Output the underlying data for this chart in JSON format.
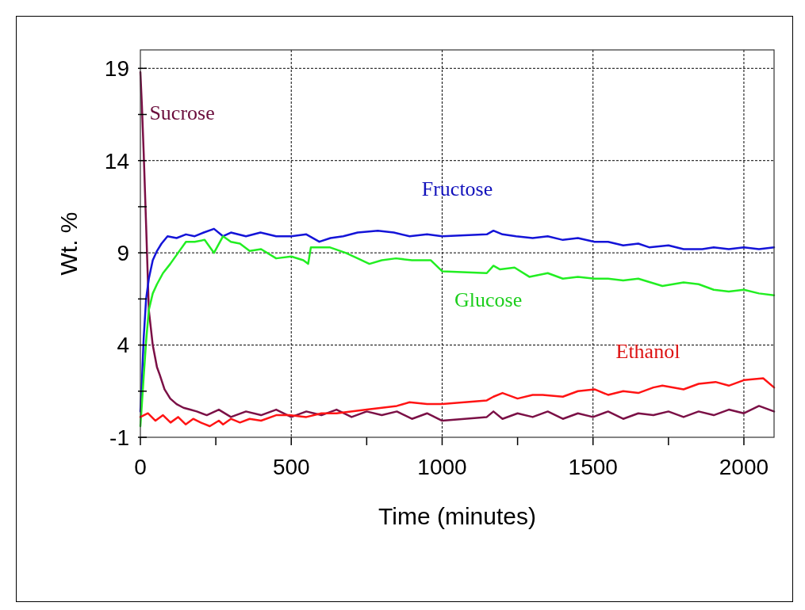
{
  "chart_data": {
    "type": "line",
    "xlabel": "Time (minutes)",
    "ylabel": "Wt. %",
    "xlim": [
      0,
      2100
    ],
    "ylim": [
      -1,
      20
    ],
    "xticks": [
      0,
      {
        "value": 250,
        "label": null
      },
      500,
      {
        "value": 750,
        "label": null
      },
      1000,
      {
        "value": 1250,
        "label": null
      },
      1500,
      {
        "value": 1750,
        "label": null
      },
      2000
    ],
    "yticks": [
      -1,
      {
        "value": 1.5,
        "label": null
      },
      4,
      {
        "value": 6.5,
        "label": null
      },
      9,
      {
        "value": 11.5,
        "label": null
      },
      14,
      {
        "value": 16.5,
        "label": null
      },
      19
    ],
    "grid": true,
    "marker": "none",
    "line_style": "solid",
    "legend": false,
    "series": [
      {
        "name": "Sucrose",
        "color": "#7b1046",
        "x": [
          0,
          5,
          11,
          19,
          28,
          41,
          55,
          64,
          80,
          99,
          120,
          143,
          165,
          187,
          220,
          260,
          300,
          350,
          400,
          450,
          500,
          550,
          600,
          650,
          700,
          750,
          800,
          850,
          900,
          950,
          1000,
          1148,
          1170,
          1200,
          1250,
          1300,
          1350,
          1400,
          1450,
          1500,
          1550,
          1600,
          1650,
          1700,
          1750,
          1800,
          1850,
          1900,
          1950,
          2000,
          2050,
          2100
        ],
        "values": [
          18.8,
          17,
          14.4,
          10.5,
          5.9,
          4,
          2.8,
          2.4,
          1.6,
          1.1,
          0.8,
          0.6,
          0.5,
          0.4,
          0.2,
          0.5,
          0.1,
          0.4,
          0.2,
          0.5,
          0.1,
          0.4,
          0.2,
          0.5,
          0.1,
          0.4,
          0.2,
          0.4,
          0.0,
          0.3,
          -0.1,
          0.1,
          0.4,
          0.0,
          0.3,
          0.1,
          0.4,
          0.0,
          0.3,
          0.1,
          0.4,
          0.0,
          0.3,
          0.2,
          0.4,
          0.1,
          0.4,
          0.2,
          0.5,
          0.3,
          0.7,
          0.4
        ]
      },
      {
        "name": "Fructose",
        "color": "#1414d8",
        "x": [
          0,
          5,
          11,
          19,
          28,
          41,
          55,
          70,
          90,
          120,
          151,
          180,
          210,
          244,
          274,
          300,
          350,
          398,
          450,
          500,
          550,
          593,
          630,
          672,
          720,
          787,
          840,
          892,
          950,
          1000,
          1148,
          1170,
          1200,
          1245,
          1300,
          1350,
          1400,
          1450,
          1505,
          1550,
          1600,
          1650,
          1686,
          1750,
          1800,
          1862,
          1900,
          1950,
          2000,
          2050,
          2100
        ],
        "values": [
          0.4,
          2,
          4.4,
          6.5,
          7.6,
          8.6,
          9.1,
          9.5,
          9.9,
          9.8,
          10.0,
          9.9,
          10.1,
          10.3,
          9.9,
          10.1,
          9.9,
          10.1,
          9.9,
          9.9,
          10.0,
          9.6,
          9.8,
          9.9,
          10.1,
          10.2,
          10.1,
          9.9,
          10.0,
          9.9,
          10.0,
          10.2,
          10.0,
          9.9,
          9.8,
          9.9,
          9.7,
          9.8,
          9.6,
          9.6,
          9.4,
          9.5,
          9.3,
          9.4,
          9.2,
          9.2,
          9.3,
          9.2,
          9.3,
          9.2,
          9.3
        ]
      },
      {
        "name": "Glucose",
        "color": "#22ee22",
        "x": [
          0,
          5,
          11,
          19,
          28,
          41,
          55,
          75,
          99,
          125,
          151,
          180,
          213,
          244,
          274,
          300,
          330,
          362,
          400,
          450,
          500,
          540,
          556,
          565,
          600,
          627,
          680,
          720,
          759,
          800,
          847,
          900,
          962,
          1000,
          1148,
          1170,
          1192,
          1240,
          1289,
          1350,
          1400,
          1450,
          1505,
          1550,
          1600,
          1650,
          1730,
          1800,
          1850,
          1900,
          1950,
          2000,
          2050,
          2100
        ],
        "values": [
          -0.4,
          0.8,
          2.3,
          4.2,
          5.9,
          6.8,
          7.3,
          7.9,
          8.4,
          9.0,
          9.6,
          9.6,
          9.7,
          9.0,
          9.9,
          9.6,
          9.5,
          9.1,
          9.2,
          8.7,
          8.8,
          8.6,
          8.4,
          9.3,
          9.3,
          9.3,
          9.0,
          8.7,
          8.4,
          8.6,
          8.7,
          8.6,
          8.6,
          8.0,
          7.9,
          8.3,
          8.1,
          8.2,
          7.7,
          7.9,
          7.6,
          7.7,
          7.6,
          7.6,
          7.5,
          7.6,
          7.2,
          7.4,
          7.3,
          7.0,
          6.9,
          7.0,
          6.8,
          6.7
        ]
      },
      {
        "name": "Ethanol",
        "color": "#ff1414",
        "x": [
          0,
          25,
          50,
          75,
          100,
          125,
          150,
          175,
          200,
          230,
          260,
          274,
          300,
          330,
          362,
          400,
          450,
          494,
          550,
          600,
          650,
          697,
          750,
          800,
          850,
          892,
          950,
          1000,
          1148,
          1170,
          1200,
          1250,
          1300,
          1333,
          1400,
          1450,
          1505,
          1550,
          1600,
          1650,
          1700,
          1730,
          1800,
          1850,
          1906,
          1950,
          2000,
          2064,
          2100
        ],
        "values": [
          0.1,
          0.3,
          -0.1,
          0.2,
          -0.2,
          0.1,
          -0.3,
          0.0,
          -0.2,
          -0.4,
          -0.1,
          -0.3,
          0.0,
          -0.2,
          0.0,
          -0.1,
          0.2,
          0.2,
          0.1,
          0.3,
          0.3,
          0.4,
          0.5,
          0.6,
          0.7,
          0.9,
          0.8,
          0.8,
          1.0,
          1.2,
          1.4,
          1.1,
          1.3,
          1.3,
          1.2,
          1.5,
          1.6,
          1.3,
          1.5,
          1.4,
          1.7,
          1.8,
          1.6,
          1.9,
          2.0,
          1.8,
          2.1,
          2.2,
          1.7
        ]
      }
    ]
  }
}
